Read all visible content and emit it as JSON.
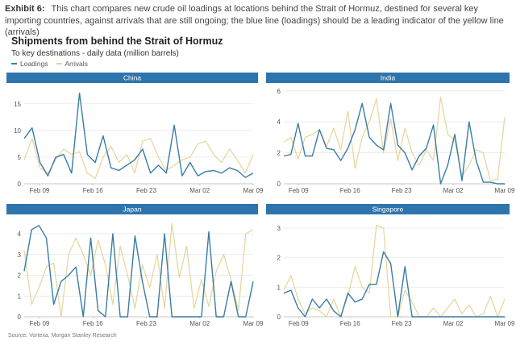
{
  "exhibit": {
    "label": "Exhibit 6:",
    "text": "This chart compares new crude oil loadings at locations behind the Strait of Hormuz, destined for several key importing countries, against arrivals that are still ongoing; the blue line (loadings) should be a leading indicator of the yellow line (arrivals)"
  },
  "title": "Shipments from behind the Strait of Hormuz",
  "subtitle": "To key destinations - daily data (million barrels)",
  "legend": {
    "loadings": "Loadings",
    "arrivals": "Arrivals"
  },
  "source": "Source: Vortexa, Morgan Stanley Research",
  "colors": {
    "loadings": "#3a7ca5",
    "arrivals": "#e6d49a",
    "header": "#2e75ad",
    "grid": "#e4e4e4",
    "axis": "#bbbbbb"
  },
  "chart_data": [
    {
      "type": "line",
      "title": "China",
      "x_start": "Feb 07",
      "x_ticks": [
        "Feb 09",
        "Feb 16",
        "Feb 23",
        "Mar 02",
        "Mar 09"
      ],
      "ylim": [
        0,
        18
      ],
      "yticks": [
        0,
        5,
        10,
        15
      ],
      "series": [
        {
          "name": "Loadings",
          "values": [
            8.5,
            10.5,
            4.0,
            1.5,
            5.0,
            5.5,
            2.0,
            17.0,
            5.5,
            4.0,
            9.0,
            3.0,
            2.5,
            3.5,
            4.5,
            6.5,
            2.0,
            3.5,
            2.0,
            11.0,
            1.5,
            4.0,
            1.5,
            2.3,
            2.5,
            2.0,
            3.0,
            2.5,
            1.2,
            2.0
          ]
        },
        {
          "name": "Arrivals",
          "values": [
            4.5,
            8.5,
            3.0,
            2.0,
            4.5,
            6.5,
            5.5,
            6.0,
            2.0,
            1.0,
            5.0,
            7.0,
            4.0,
            5.5,
            2.0,
            8.0,
            8.5,
            5.0,
            2.5,
            3.5,
            4.5,
            5.0,
            7.5,
            8.0,
            5.5,
            4.0,
            6.5,
            4.5,
            2.0,
            5.5
          ]
        }
      ]
    },
    {
      "type": "line",
      "title": "India",
      "x_start": "Feb 07",
      "x_ticks": [
        "Feb 09",
        "Feb 16",
        "Feb 23",
        "Mar 02",
        "Mar 09"
      ],
      "ylim": [
        0,
        6.2
      ],
      "yticks": [
        0,
        2,
        4,
        6
      ],
      "series": [
        {
          "name": "Loadings",
          "values": [
            1.8,
            1.9,
            3.9,
            1.8,
            1.8,
            3.5,
            2.3,
            2.2,
            1.5,
            2.3,
            3.5,
            5.2,
            3.0,
            2.5,
            2.2,
            5.2,
            2.5,
            2.0,
            0.9,
            1.8,
            2.3,
            3.8,
            0.0,
            1.2,
            3.2,
            0.2,
            4.0,
            1.5,
            0.1,
            0.1,
            0.0,
            0.0
          ]
        },
        {
          "name": "Arrivals",
          "values": [
            2.7,
            3.0,
            1.6,
            3.0,
            3.2,
            3.5,
            2.4,
            3.6,
            2.2,
            4.7,
            1.0,
            3.0,
            4.0,
            5.5,
            2.0,
            4.2,
            1.5,
            3.6,
            2.0,
            1.2,
            2.2,
            1.5,
            5.6,
            3.2,
            2.8,
            0.5,
            1.2,
            2.2,
            2.0,
            0.2,
            0.3,
            4.3
          ]
        }
      ]
    },
    {
      "type": "line",
      "title": "Japan",
      "x_start": "Feb 07",
      "x_ticks": [
        "Feb 09",
        "Feb 16",
        "Feb 23",
        "Mar 02",
        "Mar 09"
      ],
      "ylim": [
        0,
        4.7
      ],
      "yticks": [
        0,
        1,
        2,
        3,
        4
      ],
      "series": [
        {
          "name": "Loadings",
          "values": [
            2.2,
            4.2,
            4.4,
            3.8,
            0.6,
            1.7,
            2.0,
            2.4,
            0.0,
            3.8,
            0.3,
            0.0,
            4.0,
            0.0,
            0.0,
            3.9,
            1.7,
            0.0,
            0.0,
            4.0,
            0.0,
            0.0,
            0.0,
            0.0,
            0.0,
            4.1,
            0.0,
            0.0,
            1.7,
            0.0,
            0.0,
            1.7
          ]
        },
        {
          "name": "Arrivals",
          "values": [
            3.2,
            0.6,
            1.4,
            2.4,
            2.6,
            0.0,
            3.0,
            3.8,
            3.0,
            2.0,
            3.7,
            2.5,
            0.6,
            3.4,
            2.0,
            0.4,
            2.5,
            1.4,
            3.0,
            0.4,
            4.5,
            1.9,
            3.4,
            0.4,
            1.8,
            0.5,
            2.2,
            3.0,
            1.8,
            0.3,
            4.0,
            4.2
          ]
        }
      ]
    },
    {
      "type": "line",
      "title": "Singapore",
      "x_start": "Feb 07",
      "x_ticks": [
        "Feb 09",
        "Feb 16",
        "Feb 23",
        "Mar 02",
        "Mar 09"
      ],
      "ylim": [
        0,
        3.3
      ],
      "yticks": [
        0,
        1,
        2,
        3
      ],
      "series": [
        {
          "name": "Loadings",
          "values": [
            0.8,
            0.9,
            0.3,
            0.0,
            0.6,
            0.3,
            0.6,
            0.2,
            0.0,
            0.8,
            0.5,
            0.6,
            1.1,
            1.1,
            2.2,
            1.8,
            0.0,
            1.7,
            0.0,
            0.0,
            0.0,
            0.0,
            0.0,
            0.0,
            0.0,
            0.0,
            0.0,
            0.0,
            0.0,
            0.0,
            0.0,
            0.0
          ]
        },
        {
          "name": "Arrivals",
          "values": [
            0.9,
            1.4,
            0.6,
            0.1,
            0.3,
            0.2,
            0.0,
            0.6,
            0.0,
            0.7,
            1.7,
            1.0,
            0.8,
            3.1,
            3.0,
            0.0,
            0.0,
            0.9,
            0.5,
            0.0,
            0.0,
            0.3,
            0.0,
            0.3,
            0.6,
            0.1,
            0.4,
            0.0,
            0.1,
            0.7,
            0.0,
            0.6
          ]
        }
      ]
    }
  ]
}
